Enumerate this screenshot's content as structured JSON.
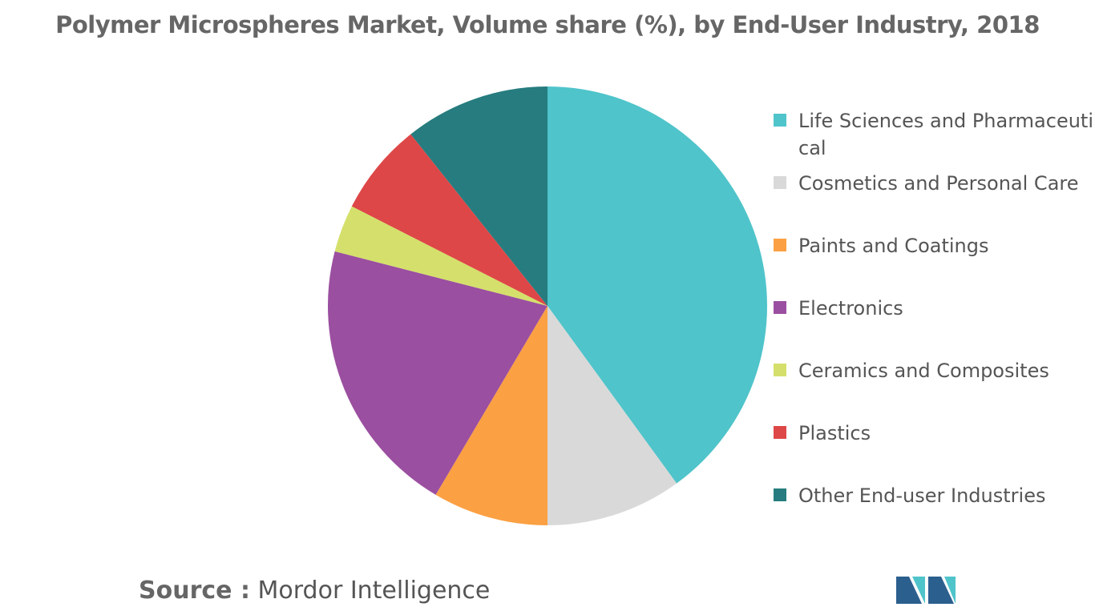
{
  "chart_data": {
    "type": "pie",
    "title": "Polymer Microspheres Market, Volume share (%), by End-User Industry, 2018",
    "categories": [
      "Life Sciences and Pharmaceutical",
      "Cosmetics and Personal Care",
      "Paints and Coatings",
      "Electronics",
      "Ceramics and Composites",
      "Plastics",
      "Other End-user Industries"
    ],
    "values": [
      40,
      10,
      8.5,
      20.5,
      3.5,
      6.8,
      10.7
    ],
    "colors": [
      "#4fc4ca",
      "#d9d9d9",
      "#fba043",
      "#9b4fa0",
      "#d4e06b",
      "#de4747",
      "#267c7e"
    ],
    "legend": "right"
  },
  "source_label": "Source :",
  "source": "Mordor Intelligence"
}
